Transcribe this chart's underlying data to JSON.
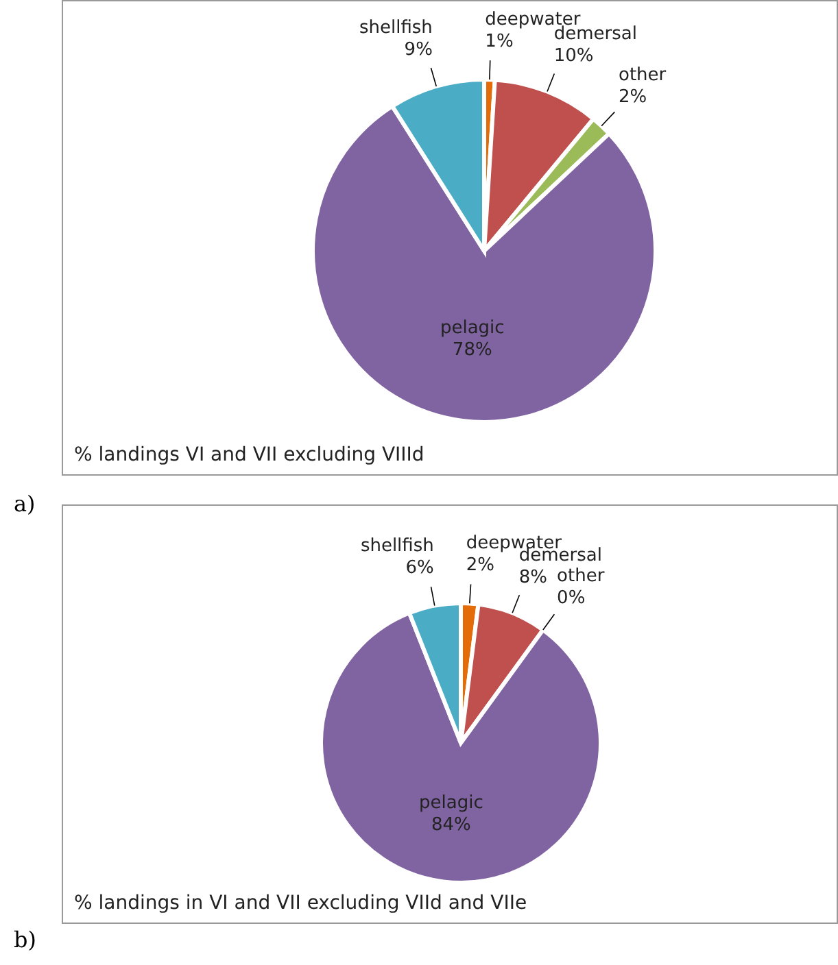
{
  "chart_data": [
    {
      "type": "pie",
      "title": "% landings VI and VII excluding VIIId",
      "annotations": [
        "a)"
      ],
      "categories": [
        "deepwater",
        "demersal",
        "other",
        "pelagic",
        "shellfish"
      ],
      "values": [
        1,
        10,
        2,
        78,
        9
      ],
      "value_labels": [
        "1%",
        "10%",
        "2%",
        "78%",
        "9%"
      ],
      "colors": [
        "#e36c09",
        "#c0504d",
        "#9bbb59",
        "#8064a2",
        "#4bacc6"
      ]
    },
    {
      "type": "pie",
      "title": "% landings in VI and VII excluding VIId and VIIe",
      "annotations": [
        "b)"
      ],
      "categories": [
        "deepwater",
        "demersal",
        "other",
        "pelagic",
        "shellfish"
      ],
      "values": [
        2,
        8,
        0,
        84,
        6
      ],
      "value_labels": [
        "2%",
        "8%",
        "0%",
        "84%",
        "6%"
      ],
      "colors": [
        "#e36c09",
        "#c0504d",
        "#9bbb59",
        "#8064a2",
        "#4bacc6"
      ]
    }
  ]
}
